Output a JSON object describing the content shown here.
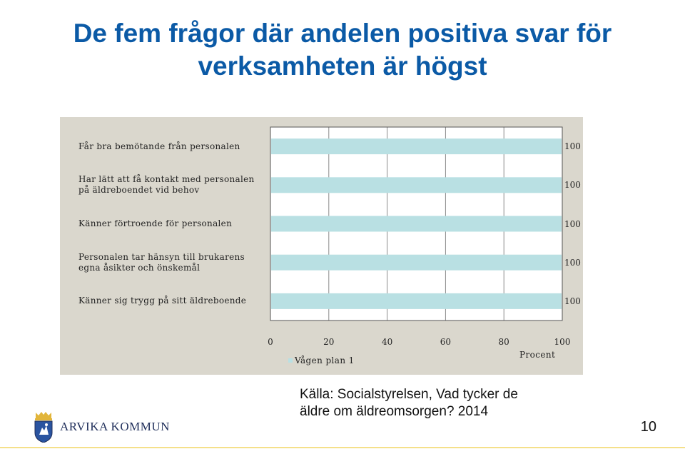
{
  "slide": {
    "title": "De fem frågor där andelen positiva svar för verksamheten är högst",
    "source_line1": "Källa: Socialstyrelsen, Vad tycker de",
    "source_line2": "äldre om äldreomsorgen? 2014",
    "page_number": "10",
    "logo_text": "ARVIKA KOMMUN"
  },
  "chart_data": {
    "type": "bar",
    "orientation": "horizontal",
    "categories": [
      [
        "Får bra bemötande från personalen"
      ],
      [
        "Har lätt att få kontakt med personalen",
        "på äldreboendet vid behov"
      ],
      [
        "Känner förtroende för personalen"
      ],
      [
        "Personalen tar hänsyn till brukarens",
        "egna åsikter och önskemål"
      ],
      [
        "Känner sig trygg på sitt äldreboende"
      ]
    ],
    "series": [
      {
        "name": "Vågen plan 1",
        "values": [
          100,
          100,
          100,
          100,
          100
        ],
        "color": "#b9e0e3"
      }
    ],
    "value_labels": [
      "100",
      "100",
      "100",
      "100",
      "100"
    ],
    "x_ticks": [
      "0",
      "20",
      "40",
      "60",
      "80",
      "100"
    ],
    "xlim": [
      0,
      100
    ],
    "xlabel": "Procent",
    "ylabel": "",
    "grid": "vertical",
    "legend_position": "bottom-left"
  }
}
